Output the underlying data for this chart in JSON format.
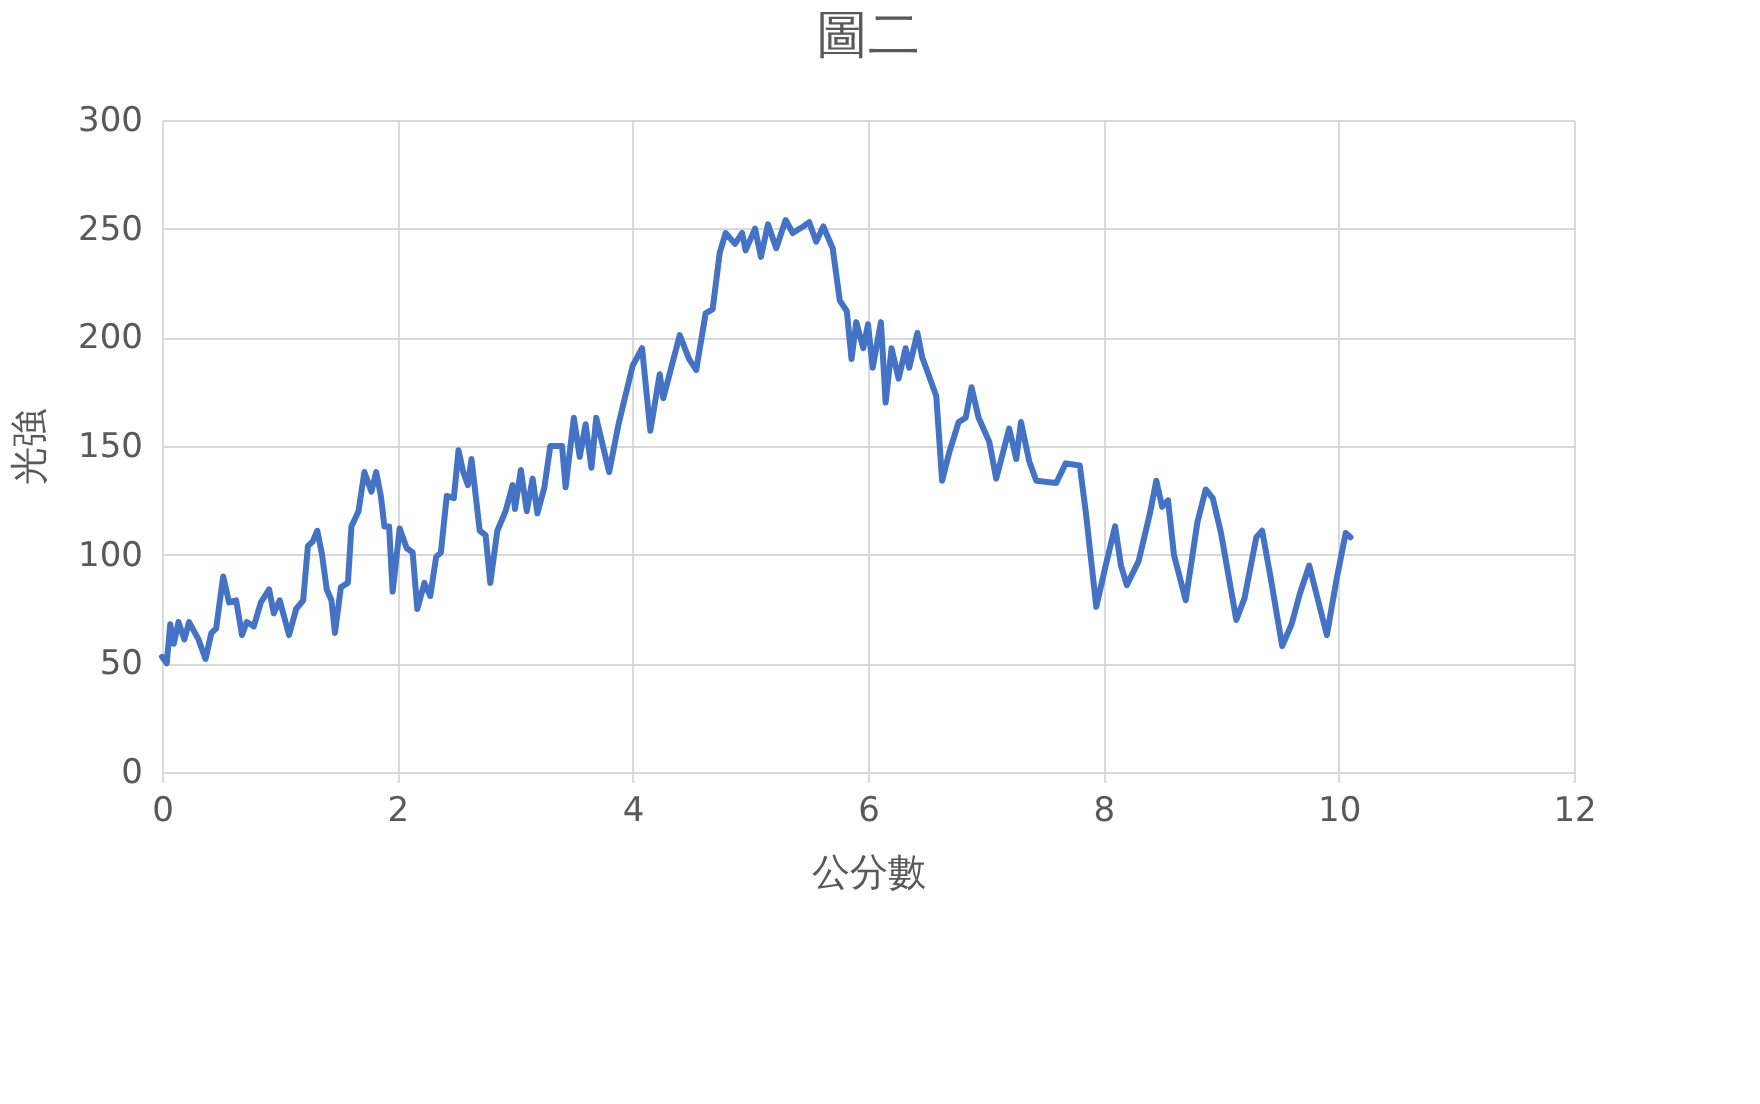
{
  "chart_data": {
    "type": "line",
    "title": "圖二",
    "xlabel": "公分數",
    "ylabel": "光強",
    "xlim": [
      0,
      12
    ],
    "xticks": [
      0,
      2,
      4,
      6,
      8,
      10,
      12
    ],
    "ylim": [
      0,
      300
    ],
    "yticks": [
      0,
      50,
      100,
      150,
      200,
      250,
      300
    ],
    "grid": true,
    "legend": false,
    "marker": "none",
    "line_style": "solid",
    "x": [
      0,
      0.04,
      0.07,
      0.1,
      0.14,
      0.19,
      0.23,
      0.31,
      0.37,
      0.42,
      0.46,
      0.52,
      0.57,
      0.63,
      0.68,
      0.72,
      0.78,
      0.84,
      0.91,
      0.95,
      1.0,
      1.08,
      1.14,
      1.2,
      1.24,
      1.28,
      1.32,
      1.36,
      1.4,
      1.44,
      1.47,
      1.52,
      1.58,
      1.61,
      1.67,
      1.72,
      1.78,
      1.82,
      1.86,
      1.89,
      1.93,
      1.96,
      2.02,
      2.08,
      2.13,
      2.17,
      2.23,
      2.28,
      2.33,
      2.37,
      2.42,
      2.48,
      2.52,
      2.56,
      2.6,
      2.63,
      2.66,
      2.7,
      2.75,
      2.79,
      2.85,
      2.92,
      2.98,
      3.0,
      3.05,
      3.1,
      3.15,
      3.19,
      3.25,
      3.3,
      3.36,
      3.4,
      3.43,
      3.5,
      3.55,
      3.6,
      3.65,
      3.69,
      3.8,
      3.88,
      4.0,
      4.08,
      4.15,
      4.23,
      4.26,
      4.4,
      4.48,
      4.54,
      4.62,
      4.68,
      4.74,
      4.79,
      4.87,
      4.93,
      4.96,
      5.04,
      5.09,
      5.15,
      5.22,
      5.3,
      5.36,
      5.45,
      5.5,
      5.56,
      5.62,
      5.7,
      5.76,
      5.82,
      5.86,
      5.9,
      5.96,
      6.0,
      6.04,
      6.11,
      6.15,
      6.2,
      6.26,
      6.32,
      6.35,
      6.42,
      6.46,
      6.58,
      6.63,
      6.69,
      6.77,
      6.83,
      6.88,
      6.94,
      7.03,
      7.09,
      7.2,
      7.26,
      7.3,
      7.37,
      7.43,
      7.6,
      7.68,
      7.8,
      7.85,
      7.94,
      8.02,
      8.1,
      8.15,
      8.2,
      8.3,
      8.4,
      8.45,
      8.5,
      8.55,
      8.6,
      8.7,
      8.8,
      8.87,
      8.93,
      9.0,
      9.13,
      9.2,
      9.3,
      9.35,
      9.42,
      9.52,
      9.6,
      9.67,
      9.75,
      9.82,
      9.9,
      9.98,
      10.06,
      10.1
    ],
    "series": [
      {
        "color": "#4472c4",
        "values": [
          53,
          50,
          68,
          59,
          69,
          61,
          69,
          61,
          52,
          64,
          66,
          90,
          78,
          79,
          63,
          69,
          67,
          78,
          84,
          73,
          79,
          63,
          75,
          79,
          104,
          106,
          111,
          100,
          84,
          79,
          64,
          85,
          87,
          113,
          120,
          138,
          129,
          138,
          127,
          113,
          113,
          83,
          112,
          103,
          101,
          75,
          87,
          81,
          99,
          101,
          127,
          126,
          148,
          138,
          132,
          144,
          130,
          111,
          109,
          87,
          111,
          120,
          132,
          121,
          139,
          120,
          135,
          119,
          131,
          150,
          150,
          150,
          131,
          163,
          145,
          160,
          140,
          163,
          138,
          160,
          187,
          195,
          157,
          183,
          172,
          201,
          190,
          185,
          211,
          213,
          239,
          248,
          243,
          248,
          240,
          250,
          237,
          252,
          241,
          254,
          248,
          251,
          253,
          244,
          251,
          241,
          217,
          212,
          190,
          207,
          195,
          206,
          186,
          207,
          170,
          195,
          181,
          195,
          186,
          202,
          191,
          173,
          134,
          147,
          161,
          163,
          177,
          163,
          152,
          135,
          158,
          144,
          161,
          143,
          134,
          133,
          142,
          141,
          120,
          76,
          95,
          113,
          95,
          86,
          97,
          120,
          134,
          122,
          125,
          100,
          79,
          115,
          130,
          126,
          110,
          70,
          80,
          108,
          111,
          90,
          58,
          68,
          82,
          95,
          80,
          63,
          88,
          110,
          108
        ]
      }
    ]
  }
}
